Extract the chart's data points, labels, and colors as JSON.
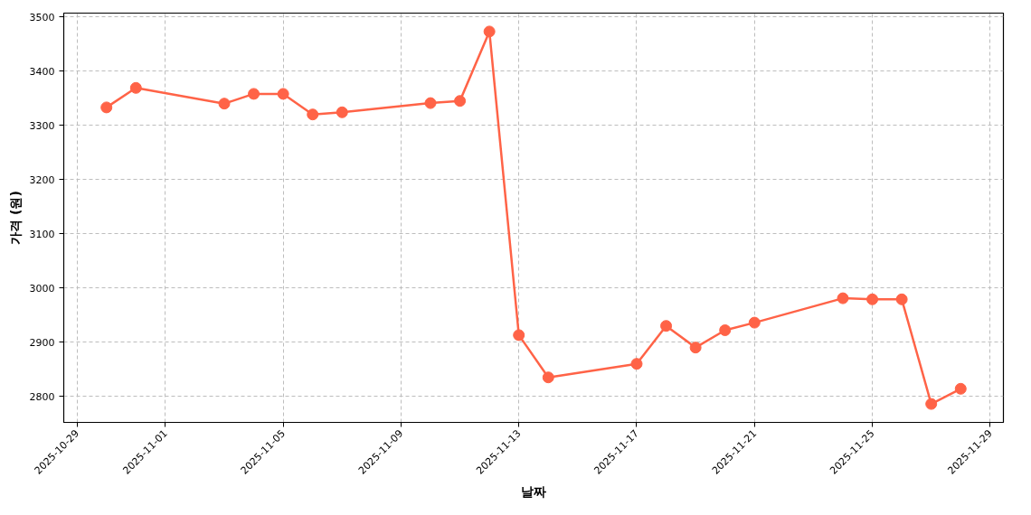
{
  "chart_data": {
    "type": "line",
    "xlabel": "날짜",
    "ylabel": "가격 (원)",
    "x": [
      "2025-10-30",
      "2025-10-31",
      "2025-11-03",
      "2025-11-04",
      "2025-11-05",
      "2025-11-06",
      "2025-11-07",
      "2025-11-10",
      "2025-11-11",
      "2025-11-12",
      "2025-11-13",
      "2025-11-14",
      "2025-11-17",
      "2025-11-18",
      "2025-11-19",
      "2025-11-20",
      "2025-11-21",
      "2025-11-24",
      "2025-11-25",
      "2025-11-26",
      "2025-11-27",
      "2025-11-28"
    ],
    "series": [
      {
        "color": "#ff6347",
        "values": [
          3333,
          3369,
          3340,
          3358,
          3358,
          3320,
          3324,
          3341,
          3345,
          3473,
          2913,
          2835,
          2860,
          2930,
          2890,
          2922,
          2936,
          2981,
          2979,
          2979,
          2786,
          2814
        ]
      }
    ],
    "xlim": [
      "2025-10-28T13:12",
      "2025-11-29T10:48"
    ],
    "ylim": [
      2752,
      3507
    ],
    "xticks": [
      "2025-10-29",
      "2025-11-01",
      "2025-11-05",
      "2025-11-09",
      "2025-11-13",
      "2025-11-17",
      "2025-11-21",
      "2025-11-25",
      "2025-11-29"
    ],
    "yticks": [
      2800,
      2900,
      3000,
      3100,
      3200,
      3300,
      3400,
      3500
    ],
    "grid": true,
    "marker": "circle",
    "line_style": "solid"
  }
}
